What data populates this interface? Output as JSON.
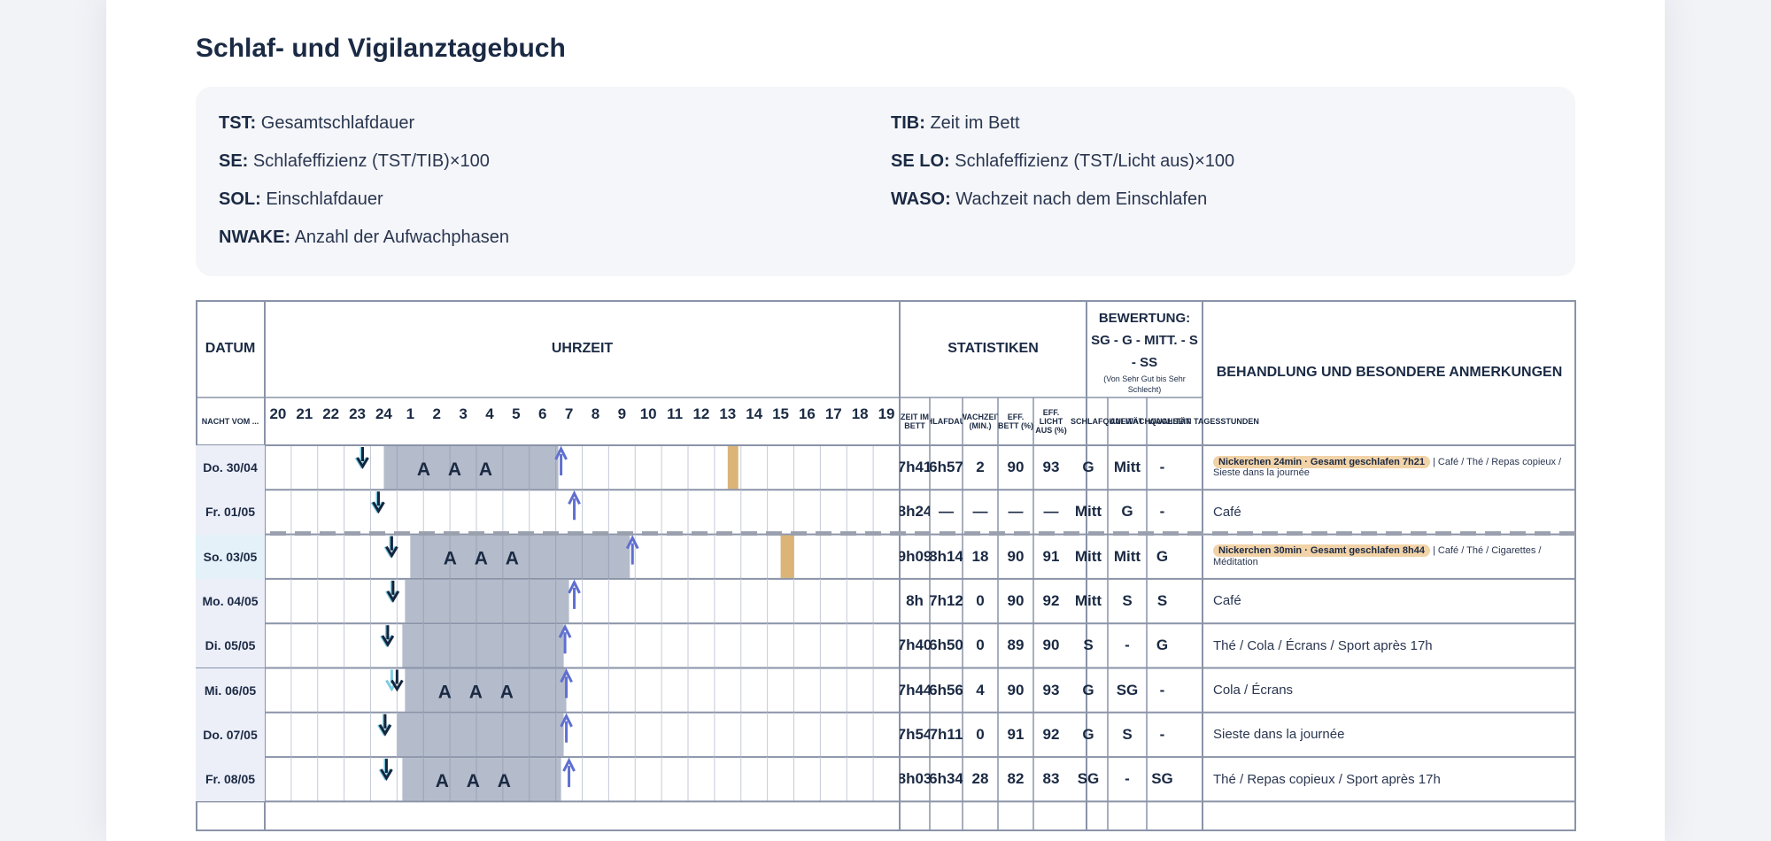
{
  "title": "Schlaf- und Vigilanztagebuch",
  "legend": [
    {
      "key": "TST:",
      "text": "Gesamtschlafdauer"
    },
    {
      "key": "TIB:",
      "text": "Zeit im Bett"
    },
    {
      "key": "SE:",
      "text": "Schlafeffizienz (TST/TIB)×100"
    },
    {
      "key": "SE LO:",
      "text": "Schlafeffizienz (TST/Licht aus)×100"
    },
    {
      "key": "SOL:",
      "text": "Einschlafdauer"
    },
    {
      "key": "WASO:",
      "text": "Wachzeit nach dem Einschlafen"
    },
    {
      "key": "NWAKE:",
      "text": "Anzahl der Aufwachphasen"
    }
  ],
  "headers": {
    "datum": "DATUM",
    "uhrzeit": "UHRZEIT",
    "statistiken": "STATISTIKEN",
    "bewertung": "BEWERTUNG: SG - G - MITT. - S - SS",
    "bewertung_sub": "(Von Sehr Gut bis Sehr Schlecht)",
    "behandlung": "BEHANDLUNG UND BESONDERE ANMERKUNGEN",
    "nacht_vom": "NACHT VOM ...",
    "hours": [
      "20",
      "21",
      "22",
      "23",
      "24",
      "1",
      "2",
      "3",
      "4",
      "5",
      "6",
      "7",
      "8",
      "9",
      "10",
      "11",
      "12",
      "13",
      "14",
      "15",
      "16",
      "17",
      "18",
      "19"
    ],
    "stat_cols": [
      "ZEIT IM BETT",
      "SCHLAFDAUER",
      "WACHZEIT (MIN.)",
      "EFF. BETT (%)",
      "EFF. LICHT AUS (%)"
    ],
    "rating_cols": [
      "SCHLAFQUALITÄT",
      "AUFWACHQUALITÄT",
      "WACHSEIN TAGESSTUNDEN"
    ]
  },
  "rows": [
    {
      "date": "Do. 30/04",
      "tib": "7h41",
      "tst": "6h57",
      "waso": "2",
      "se": "90",
      "selo": "93",
      "r1": "G",
      "r2": "Mitt",
      "r3": "-",
      "tag": "Nickerchen 24min · Gesamt geschlafen 7h21",
      "note": "| Café / Thé / Repas copieux / Sieste dans la journée"
    },
    {
      "date": "Fr. 01/05",
      "tib": "8h24",
      "tst": "—",
      "waso": "—",
      "se": "—",
      "selo": "—",
      "r1": "Mitt",
      "r2": "G",
      "r3": "-",
      "tag": "",
      "note": "Café"
    },
    {
      "date": "So. 03/05",
      "tib": "9h09",
      "tst": "8h14",
      "waso": "18",
      "se": "90",
      "selo": "91",
      "r1": "Mitt",
      "r2": "Mitt",
      "r3": "G",
      "tag": "Nickerchen 30min · Gesamt geschlafen 8h44",
      "note": "| Café / Thé / Cigarettes / Méditation"
    },
    {
      "date": "Mo. 04/05",
      "tib": "8h",
      "tst": "7h12",
      "waso": "0",
      "se": "90",
      "selo": "92",
      "r1": "Mitt",
      "r2": "S",
      "r3": "S",
      "tag": "",
      "note": "Café"
    },
    {
      "date": "Di. 05/05",
      "tib": "7h40",
      "tst": "6h50",
      "waso": "0",
      "se": "89",
      "selo": "90",
      "r1": "S",
      "r2": "-",
      "r3": "G",
      "tag": "",
      "note": "Thé / Cola / Écrans / Sport après 17h"
    },
    {
      "date": "Mi. 06/05",
      "tib": "7h44",
      "tst": "6h56",
      "waso": "4",
      "se": "90",
      "selo": "93",
      "r1": "G",
      "r2": "SG",
      "r3": "-",
      "tag": "",
      "note": "Cola / Écrans"
    },
    {
      "date": "Do. 07/05",
      "tib": "7h54",
      "tst": "7h11",
      "waso": "0",
      "se": "91",
      "selo": "92",
      "r1": "G",
      "r2": "S",
      "r3": "-",
      "tag": "",
      "note": "Sieste dans la journée"
    },
    {
      "date": "Fr. 08/05",
      "tib": "8h03",
      "tst": "6h34",
      "waso": "28",
      "se": "82",
      "selo": "83",
      "r1": "SG",
      "r2": "-",
      "r3": "SG",
      "tag": "",
      "note": "Thé / Repas copieux / Sport après 17h"
    }
  ],
  "sleep_data": [
    {
      "bed": 23.15,
      "lights": 23.2,
      "sleep_start": 24.0,
      "sleep_end": 30.6,
      "wake": 30.7,
      "awake_marks": [
        "A",
        "A",
        "A"
      ],
      "nap": [
        37.0,
        37.4
      ]
    },
    {
      "bed": 23.75,
      "lights": 23.8,
      "sleep_start": null,
      "sleep_end": null,
      "wake": 31.2,
      "awake_marks": [],
      "nap": null
    },
    {
      "bed": 24.25,
      "lights": 24.3,
      "sleep_start": 25.0,
      "sleep_end": 33.3,
      "wake": 33.4,
      "awake_marks": [
        "A",
        "A",
        "A"
      ],
      "nap": [
        39.0,
        39.5
      ]
    },
    {
      "bed": 24.3,
      "lights": 24.35,
      "sleep_start": 24.8,
      "sleep_end": 31.0,
      "wake": 31.2,
      "awake_marks": [],
      "nap": null
    },
    {
      "bed": 24.1,
      "lights": 24.15,
      "sleep_start": 24.7,
      "sleep_end": 30.8,
      "wake": 30.85,
      "awake_marks": [],
      "nap": null
    },
    {
      "bed": 24.3,
      "lights": 24.5,
      "sleep_start": 24.8,
      "sleep_end": 30.9,
      "wake": 30.9,
      "awake_marks": [
        "A",
        "A",
        "A"
      ],
      "nap": null
    },
    {
      "bed": 24.0,
      "lights": 24.05,
      "sleep_start": 24.5,
      "sleep_end": 30.8,
      "wake": 30.9,
      "awake_marks": [],
      "nap": null
    },
    {
      "bed": 24.05,
      "lights": 24.1,
      "sleep_start": 24.7,
      "sleep_end": 30.7,
      "wake": 31.0,
      "awake_marks": [
        "A",
        "A",
        "A"
      ],
      "nap": null
    }
  ],
  "colors": {
    "sleep": "#b4bccb",
    "nap": "#dbb478",
    "bed_arrow": "#7ecbe3",
    "lights_arrow": "#14253d",
    "wake_arrow": "#5f6fd0",
    "border": "#8a93a8"
  }
}
